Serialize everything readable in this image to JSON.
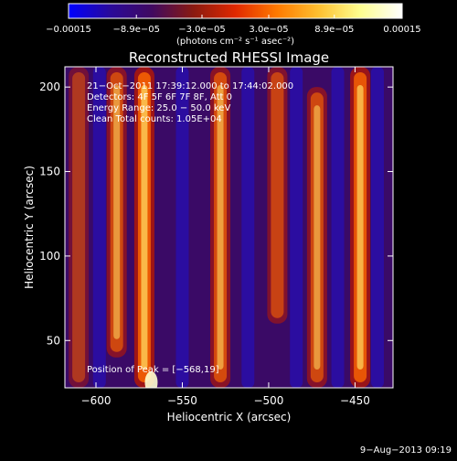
{
  "chart_data": {
    "type": "heatmap",
    "title": "Reconstructed RHESSI Image",
    "xlabel": "Heliocentric X (arcsec)",
    "ylabel": "Heliocentric Y (arcsec)",
    "xlim": [
      -618,
      -428
    ],
    "ylim": [
      22,
      212
    ],
    "x_ticks": [
      -600,
      -550,
      -500,
      -450
    ],
    "x_tick_labels": [
      "−600",
      "−550",
      "−500",
      "−450"
    ],
    "y_ticks": [
      50,
      100,
      150,
      200
    ],
    "y_tick_labels": [
      "50",
      "100",
      "150",
      "200"
    ],
    "colorbar": {
      "min": -0.00015,
      "max": 0.00015,
      "ticks": [
        -0.00015,
        -8.9e-05,
        -3e-05,
        3e-05,
        8.9e-05,
        0.00015
      ],
      "tick_labels": [
        "−0.00015",
        "−8.9e−05",
        "−3.0e−05",
        "3.0e−05",
        "8.9e−05",
        "0.00015"
      ],
      "unit_label": "(photons cm⁻² s⁻¹ asec⁻²)",
      "colormap": [
        "#0000ff",
        "#2a0a9a",
        "#400a60",
        "#8a1a10",
        "#e02800",
        "#ff7a00",
        "#ffc030",
        "#ffff90",
        "#ffffff"
      ]
    },
    "annotations": [
      "21−Oct−2011 17:39:12.000 to 17:44:02.000",
      "Detectors: 4F 5F 6F 7F 8F, Att 0",
      "Energy Range: 25.0 − 50.0 keV",
      "Clean    Total counts: 1.05E+04"
    ],
    "peak_label": "Position of Peak = [−568,19]",
    "peak": {
      "x": -568,
      "y": 19
    },
    "bright_bands": [
      {
        "x": -572,
        "y_from": 22,
        "y_to": 212,
        "intensity": 1.0
      },
      {
        "x": -588,
        "y_from": 40,
        "y_to": 212,
        "intensity": 0.75
      },
      {
        "x": -528,
        "y_from": 22,
        "y_to": 212,
        "intensity": 0.8
      },
      {
        "x": -495,
        "y_from": 60,
        "y_to": 212,
        "intensity": 0.7
      },
      {
        "x": -472,
        "y_from": 22,
        "y_to": 200,
        "intensity": 0.75
      },
      {
        "x": -447,
        "y_from": 22,
        "y_to": 212,
        "intensity": 0.95
      },
      {
        "x": -610,
        "y_from": 22,
        "y_to": 212,
        "intensity": 0.55
      }
    ]
  },
  "footer": {
    "timestamp": "9−Aug−2013 09:19"
  },
  "colors": {
    "background": "#000000",
    "text": "#ffffff"
  }
}
